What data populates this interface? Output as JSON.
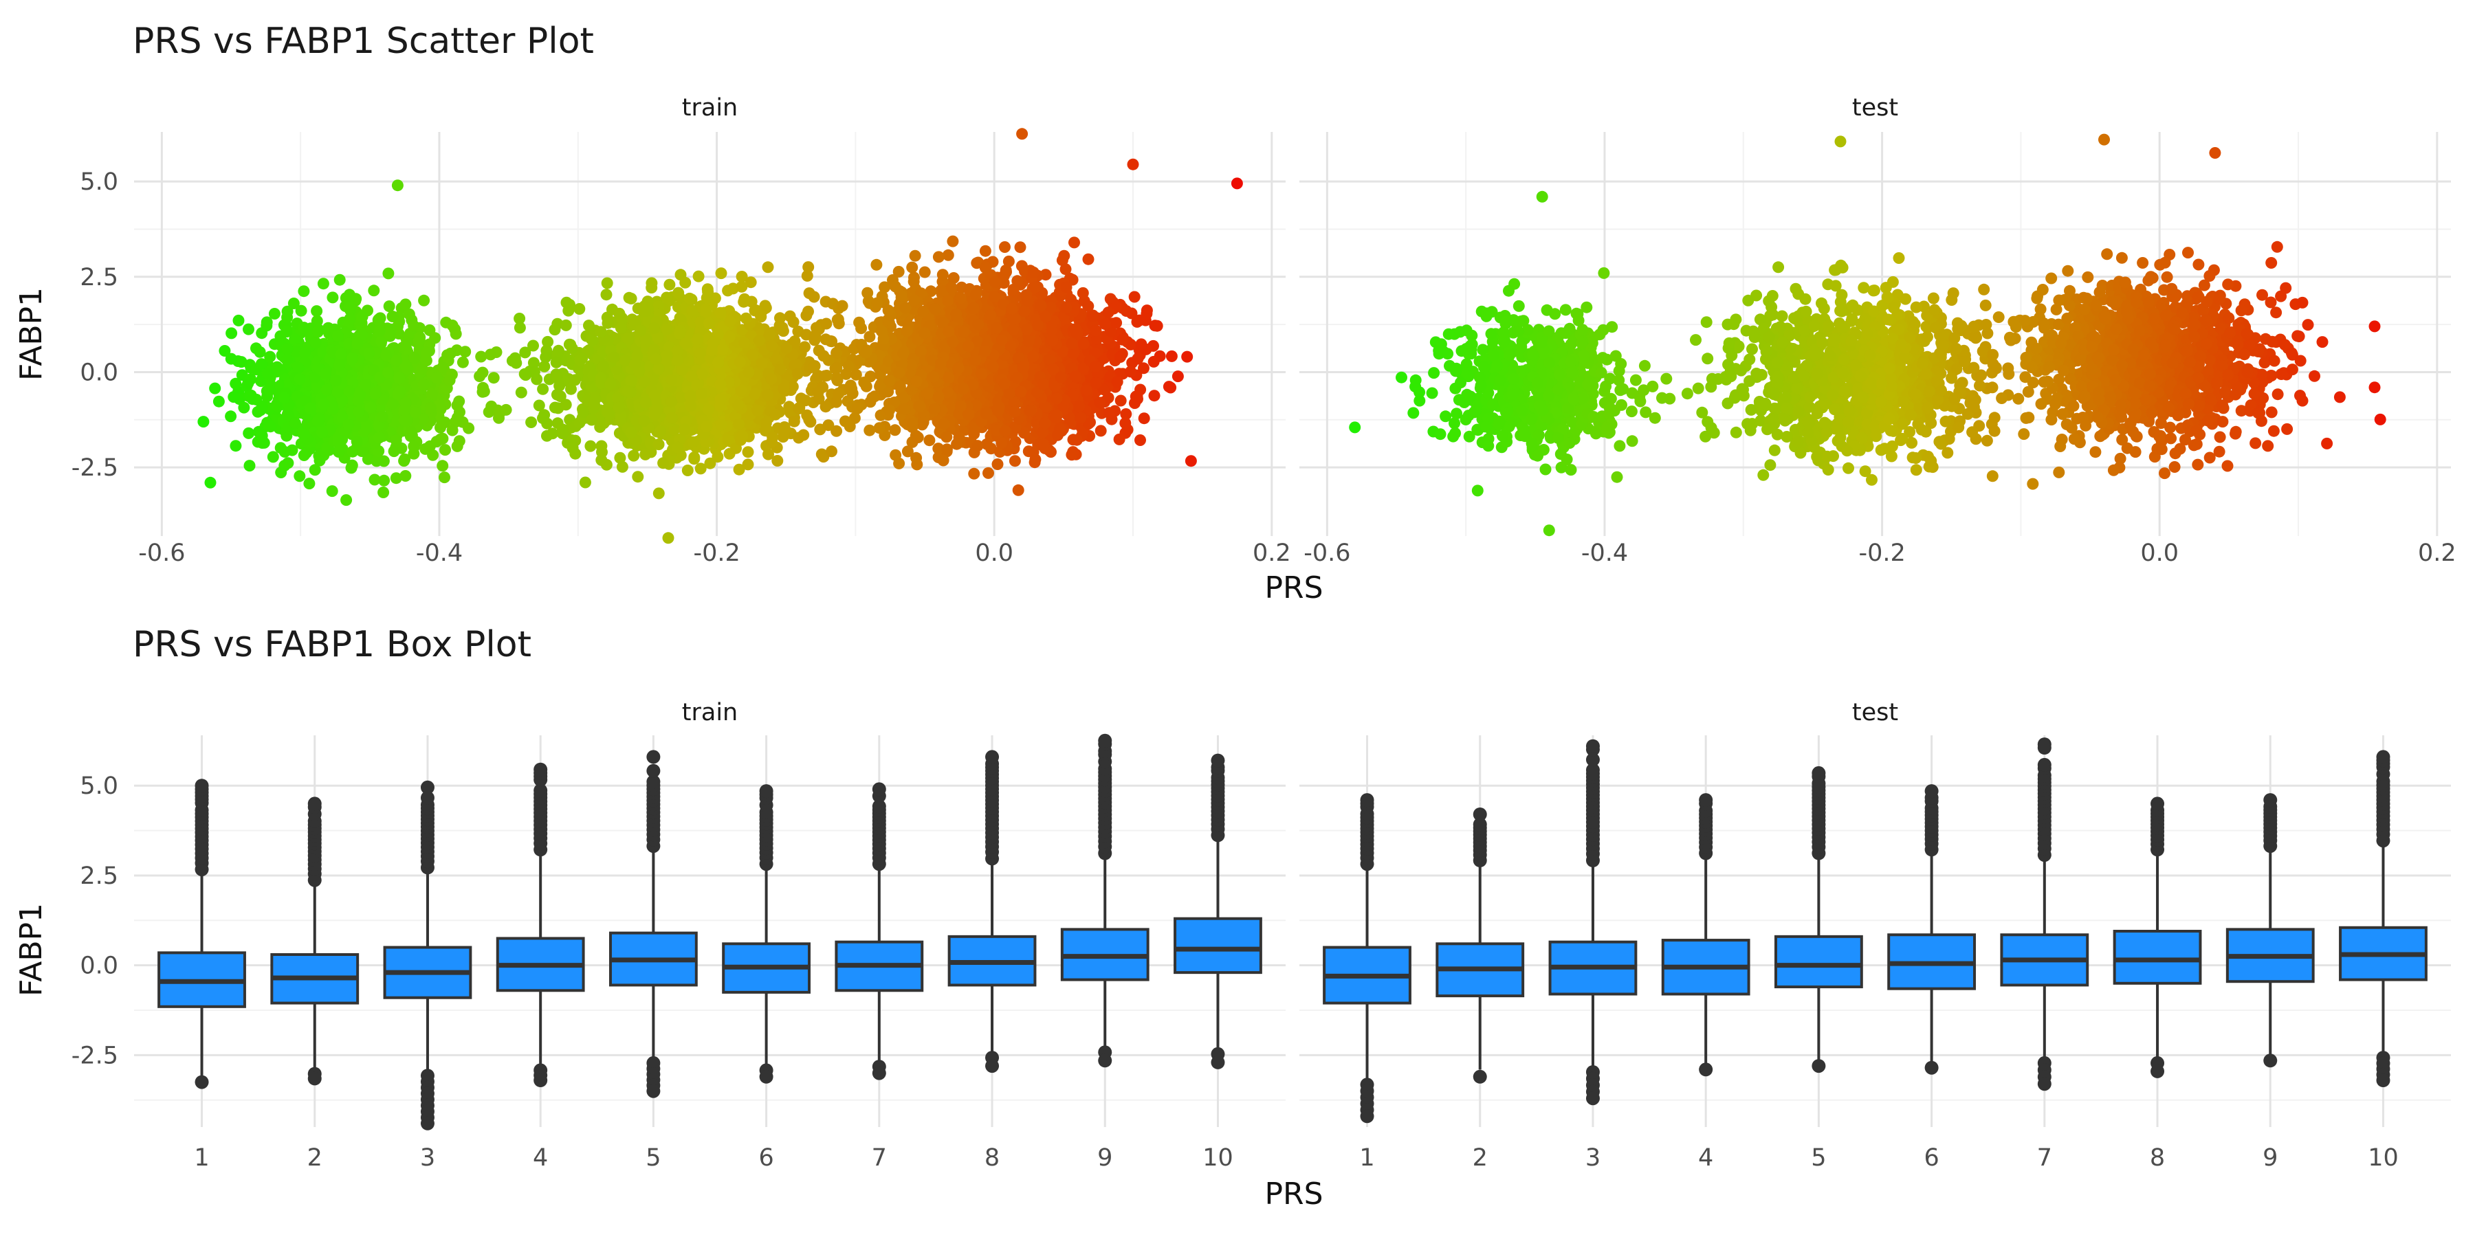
{
  "charts": [
    {
      "title": "PRS vs FABP1 Scatter Plot"
    },
    {
      "title": "PRS vs FABP1 Box Plot"
    }
  ],
  "chart_data": [
    {
      "type": "scatter",
      "title": "PRS vs FABP1 Scatter Plot",
      "xlabel": "PRS",
      "ylabel": "FABP1",
      "facets": [
        "train",
        "test"
      ],
      "xlim": [
        -0.6,
        0.2
      ],
      "ylim": [
        -4.3,
        6.3
      ],
      "x_ticks": [
        "-0.6",
        "-0.4",
        "-0.2",
        "0.0",
        "0.2"
      ],
      "y_ticks": [
        "5.0",
        "2.5",
        "0.0",
        "-2.5"
      ],
      "color_scale": {
        "low": "#22ee00",
        "mid": "#bcb800",
        "high": "#ee0a00"
      },
      "clusters": {
        "train": [
          {
            "x_center": -0.46,
            "x_sd": 0.035,
            "y_center": -0.4,
            "y_sd": 0.9,
            "n": 1400
          },
          {
            "x_center": -0.22,
            "x_sd": 0.045,
            "y_center": -0.1,
            "y_sd": 0.95,
            "n": 1900
          },
          {
            "x_center": 0.0,
            "x_sd": 0.045,
            "y_center": 0.3,
            "y_sd": 1.0,
            "n": 2300
          }
        ],
        "test": [
          {
            "x_center": -0.45,
            "x_sd": 0.033,
            "y_center": -0.4,
            "y_sd": 0.85,
            "n": 650
          },
          {
            "x_center": -0.22,
            "x_sd": 0.045,
            "y_center": -0.1,
            "y_sd": 0.95,
            "n": 1100
          },
          {
            "x_center": -0.01,
            "x_sd": 0.045,
            "y_center": 0.3,
            "y_sd": 1.0,
            "n": 1300
          }
        ]
      },
      "extreme_points": {
        "train": [
          [
            0.175,
            4.95
          ],
          [
            0.02,
            6.25
          ],
          [
            -0.235,
            -4.35
          ],
          [
            -0.565,
            -2.9
          ],
          [
            -0.57,
            -1.3
          ],
          [
            -0.55,
            0.35
          ],
          [
            -0.43,
            4.9
          ],
          [
            0.1,
            5.45
          ]
        ],
        "test": [
          [
            -0.23,
            6.05
          ],
          [
            -0.04,
            6.1
          ],
          [
            -0.44,
            -4.15
          ],
          [
            -0.58,
            -1.45
          ],
          [
            0.155,
            1.2
          ],
          [
            0.155,
            -0.4
          ],
          [
            -0.445,
            4.6
          ],
          [
            0.04,
            5.75
          ]
        ]
      }
    },
    {
      "type": "box",
      "title": "PRS vs FABP1 Box Plot",
      "xlabel": "PRS",
      "ylabel": "FABP1",
      "facets": [
        "train",
        "test"
      ],
      "ylim": [
        -4.5,
        6.4
      ],
      "y_ticks": [
        "5.0",
        "2.5",
        "0.0",
        "-2.5"
      ],
      "categories": [
        "1",
        "2",
        "3",
        "4",
        "5",
        "6",
        "7",
        "8",
        "9",
        "10"
      ],
      "box_color": "#1e90ff",
      "series": [
        {
          "name": "train",
          "q1": [
            -1.15,
            -1.05,
            -0.9,
            -0.7,
            -0.55,
            -0.75,
            -0.7,
            -0.55,
            -0.4,
            -0.2
          ],
          "median": [
            -0.45,
            -0.35,
            -0.2,
            0.0,
            0.15,
            -0.05,
            0.0,
            0.08,
            0.25,
            0.45
          ],
          "q3": [
            0.35,
            0.3,
            0.5,
            0.75,
            0.9,
            0.6,
            0.65,
            0.8,
            1.0,
            1.3
          ],
          "whisker_low": [
            -3.2,
            -2.9,
            -2.95,
            -2.8,
            -2.6,
            -2.8,
            -2.7,
            -2.45,
            -2.3,
            -2.35
          ],
          "whisker_high": [
            2.55,
            2.25,
            2.6,
            3.1,
            3.2,
            2.7,
            2.7,
            2.85,
            3.0,
            3.5
          ],
          "outlier_max": [
            5.0,
            4.5,
            4.95,
            5.45,
            5.8,
            4.85,
            4.9,
            5.8,
            6.25,
            5.7
          ],
          "outlier_min": [
            -3.25,
            -3.15,
            -4.4,
            -3.2,
            -3.5,
            -3.1,
            -3.0,
            -2.8,
            -2.65,
            -2.7
          ]
        },
        {
          "name": "test",
          "q1": [
            -1.05,
            -0.85,
            -0.8,
            -0.8,
            -0.6,
            -0.65,
            -0.55,
            -0.5,
            -0.45,
            -0.4
          ],
          "median": [
            -0.3,
            -0.1,
            -0.05,
            -0.05,
            0.0,
            0.05,
            0.15,
            0.15,
            0.25,
            0.3
          ],
          "q3": [
            0.5,
            0.6,
            0.65,
            0.7,
            0.8,
            0.85,
            0.85,
            0.95,
            1.0,
            1.05
          ],
          "whisker_low": [
            -3.2,
            -2.9,
            -2.85,
            -2.9,
            -2.8,
            -2.85,
            -2.6,
            -2.6,
            -2.65,
            -2.45
          ],
          "whisker_high": [
            2.7,
            2.8,
            2.8,
            3.0,
            3.0,
            3.1,
            2.95,
            3.1,
            3.2,
            3.35
          ],
          "outlier_max": [
            4.6,
            4.2,
            6.1,
            4.6,
            5.35,
            4.85,
            6.15,
            4.5,
            4.6,
            5.8
          ],
          "outlier_min": [
            -4.2,
            -3.1,
            -3.7,
            -2.9,
            -2.8,
            -2.85,
            -3.3,
            -2.95,
            -2.65,
            -3.2
          ]
        }
      ]
    }
  ]
}
